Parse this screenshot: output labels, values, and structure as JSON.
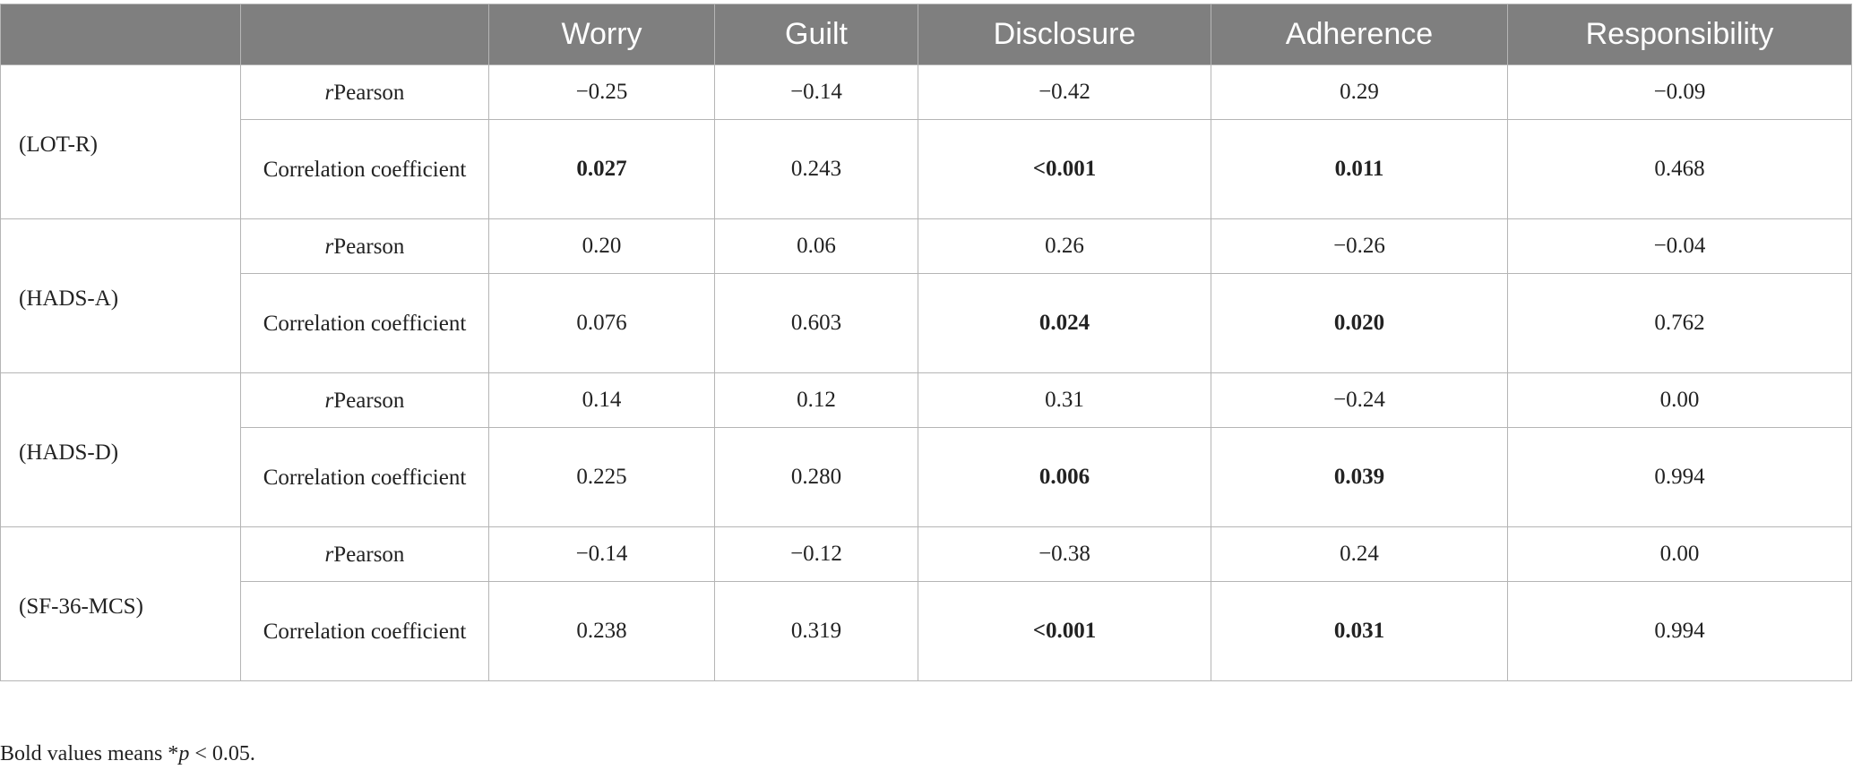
{
  "table": {
    "headers": [
      "",
      "",
      "Worry",
      "Guilt",
      "Disclosure",
      "Adherence",
      "Responsibility"
    ],
    "metric_labels": {
      "r_prefix": "r",
      "r_suffix": "Pearson",
      "coef": "Correlation coefficient"
    },
    "groups": [
      {
        "label": "(LOT-R)",
        "r": [
          "−0.25",
          "−0.14",
          "−0.42",
          "0.29",
          "−0.09"
        ],
        "coef": [
          "0.027",
          "0.243",
          "<0.001",
          "0.011",
          "0.468"
        ],
        "coef_bold": [
          true,
          false,
          true,
          true,
          false
        ]
      },
      {
        "label": "(HADS-A)",
        "r": [
          "0.20",
          "0.06",
          "0.26",
          "−0.26",
          "−0.04"
        ],
        "coef": [
          "0.076",
          "0.603",
          "0.024",
          "0.020",
          "0.762"
        ],
        "coef_bold": [
          false,
          false,
          true,
          true,
          false
        ]
      },
      {
        "label": "(HADS-D)",
        "r": [
          "0.14",
          "0.12",
          "0.31",
          "−0.24",
          "0.00"
        ],
        "coef": [
          "0.225",
          "0.280",
          "0.006",
          "0.039",
          "0.994"
        ],
        "coef_bold": [
          false,
          false,
          true,
          true,
          false
        ]
      },
      {
        "label": "(SF-36-MCS)",
        "r": [
          "−0.14",
          "−0.12",
          "−0.38",
          "0.24",
          "0.00"
        ],
        "coef": [
          "0.238",
          "0.319",
          "<0.001",
          "0.031",
          "0.994"
        ],
        "coef_bold": [
          false,
          false,
          true,
          true,
          false
        ]
      }
    ]
  },
  "footnote": {
    "before": "Bold values means *",
    "p": "p",
    "after": " < 0.05."
  }
}
